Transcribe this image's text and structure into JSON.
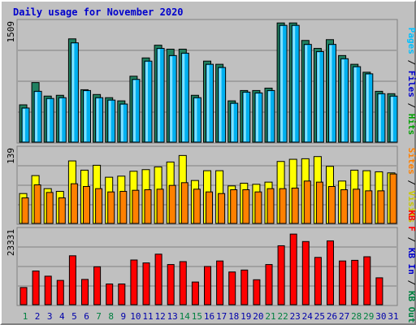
{
  "title": "Daily usage for November 2020",
  "colors": {
    "hits": "#00a000",
    "files": "#00b0f0",
    "pages": "#00c0ff",
    "visits": "#ffff00",
    "sites": "#ff8000",
    "kb_out": "#008040",
    "kb_in": "#ff0000",
    "kb_f": "#ff0000",
    "title": "#0000cc",
    "weekend_label": "#008040",
    "weekday_label": "#0000aa"
  },
  "chart_data": [
    {
      "type": "bar",
      "name": "hits-files-pages",
      "max_label": "1509",
      "legend": [
        "Pages",
        "Files",
        "Hits"
      ],
      "categories": [
        "1",
        "2",
        "3",
        "4",
        "5",
        "6",
        "7",
        "8",
        "9",
        "10",
        "11",
        "12",
        "13",
        "14",
        "15",
        "16",
        "17",
        "18",
        "19",
        "20",
        "21",
        "22",
        "23",
        "24",
        "25",
        "26",
        "27",
        "28",
        "29",
        "30",
        "31"
      ],
      "series": [
        {
          "name": "Hits",
          "values": [
            470,
            750,
            580,
            590,
            1300,
            660,
            600,
            560,
            520,
            830,
            1060,
            1220,
            1170,
            1170,
            590,
            1020,
            980,
            520,
            650,
            650,
            680,
            1500,
            1500,
            1280,
            1180,
            1290,
            1090,
            980,
            880,
            640,
            610
          ]
        },
        {
          "name": "Files",
          "values": [
            430,
            640,
            550,
            560,
            1250,
            650,
            560,
            530,
            480,
            790,
            1020,
            1180,
            1090,
            1120,
            560,
            980,
            940,
            490,
            630,
            620,
            650,
            1470,
            1470,
            1230,
            1140,
            1230,
            1050,
            950,
            860,
            610,
            580
          ]
        },
        {
          "name": "Pages",
          "values": [
            430,
            640,
            550,
            560,
            1250,
            650,
            560,
            530,
            480,
            790,
            1020,
            1180,
            1090,
            1120,
            560,
            980,
            940,
            490,
            630,
            620,
            650,
            1470,
            1470,
            1230,
            1140,
            1230,
            1050,
            950,
            860,
            610,
            580
          ]
        }
      ]
    },
    {
      "type": "bar",
      "name": "visits-sites",
      "max_label": "139",
      "legend": [
        "Sites",
        "Visits"
      ],
      "series": [
        {
          "name": "Visits",
          "values": [
            55,
            88,
            64,
            59,
            115,
            98,
            107,
            85,
            87,
            96,
            99,
            104,
            113,
            125,
            79,
            97,
            97,
            69,
            74,
            72,
            76,
            114,
            118,
            119,
            123,
            105,
            78,
            98,
            97,
            95,
            93
          ]
        },
        {
          "name": "Sites",
          "values": [
            47,
            71,
            57,
            47,
            73,
            68,
            64,
            58,
            59,
            61,
            62,
            63,
            70,
            75,
            63,
            58,
            55,
            62,
            62,
            58,
            64,
            64,
            65,
            78,
            76,
            68,
            62,
            63,
            60,
            60,
            91
          ]
        }
      ]
    },
    {
      "type": "bar",
      "name": "kbytes",
      "max_label": "23331",
      "legend": [
        "KB F",
        "KB In",
        "KB Out"
      ],
      "series": [
        {
          "name": "KB F",
          "values": [
            5300,
            10400,
            8800,
            7500,
            15100,
            7800,
            11700,
            6400,
            6400,
            13800,
            12900,
            15600,
            12400,
            13300,
            7000,
            11800,
            13500,
            10100,
            10700,
            7700,
            12400,
            18200,
            21800,
            19500,
            14600,
            19700,
            13500,
            13700,
            14800,
            8300,
            0
          ]
        },
        {
          "name": "KB In",
          "values": [
            0,
            0,
            0,
            0,
            0,
            0,
            0,
            0,
            0,
            0,
            0,
            0,
            0,
            0,
            0,
            0,
            0,
            0,
            0,
            0,
            0,
            0,
            0,
            0,
            0,
            0,
            0,
            0,
            0,
            0,
            0
          ]
        },
        {
          "name": "KB Out",
          "values": [
            0,
            0,
            0,
            0,
            0,
            0,
            0,
            0,
            0,
            0,
            0,
            0,
            0,
            0,
            0,
            0,
            0,
            0,
            0,
            0,
            0,
            0,
            0,
            0,
            0,
            0,
            0,
            0,
            0,
            0,
            0
          ]
        }
      ]
    }
  ],
  "weekend_days": [
    "1",
    "7",
    "8",
    "14",
    "15",
    "21",
    "22",
    "28",
    "29"
  ]
}
